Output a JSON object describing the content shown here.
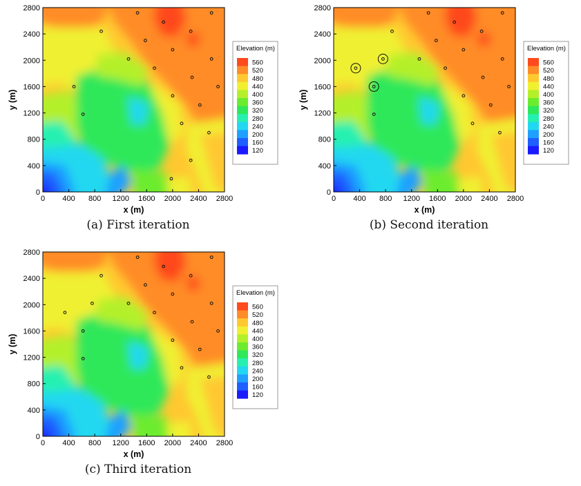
{
  "chart_data": [
    {
      "type": "heatmap",
      "panel": "a",
      "caption": "(a) First iteration",
      "xlabel": "x (m)",
      "ylabel": "y (m)",
      "xlim": [
        0,
        2800
      ],
      "ylim": [
        0,
        2800
      ],
      "xticks": [
        "0",
        "400",
        "800",
        "1200",
        "1600",
        "2000",
        "2400",
        "2800"
      ],
      "yticks": [
        "0",
        "400",
        "800",
        "1200",
        "1600",
        "2000",
        "2400",
        "2800"
      ],
      "legend_title": "Elevation (m)",
      "legend_levels": [
        "560",
        "520",
        "480",
        "440",
        "400",
        "360",
        "320",
        "280",
        "240",
        "200",
        "160",
        "120"
      ],
      "points": [
        {
          "x": 1460,
          "y": 2720
        },
        {
          "x": 2600,
          "y": 2720
        },
        {
          "x": 900,
          "y": 2440
        },
        {
          "x": 1860,
          "y": 2580
        },
        {
          "x": 2280,
          "y": 2440
        },
        {
          "x": 1580,
          "y": 2300
        },
        {
          "x": 2000,
          "y": 2160
        },
        {
          "x": 1320,
          "y": 2020
        },
        {
          "x": 1720,
          "y": 1880
        },
        {
          "x": 2600,
          "y": 2020
        },
        {
          "x": 2300,
          "y": 1740
        },
        {
          "x": 2700,
          "y": 1600
        },
        {
          "x": 480,
          "y": 1600
        },
        {
          "x": 2000,
          "y": 1460
        },
        {
          "x": 2420,
          "y": 1320
        },
        {
          "x": 620,
          "y": 1180
        },
        {
          "x": 2140,
          "y": 1040
        },
        {
          "x": 2560,
          "y": 900
        },
        {
          "x": 2280,
          "y": 480
        },
        {
          "x": 1980,
          "y": 200
        }
      ],
      "circled": []
    },
    {
      "type": "heatmap",
      "panel": "b",
      "caption": "(b) Second iteration",
      "xlabel": "x (m)",
      "ylabel": "y (m)",
      "xlim": [
        0,
        2800
      ],
      "ylim": [
        0,
        2800
      ],
      "xticks": [
        "0",
        "400",
        "800",
        "1200",
        "1600",
        "2000",
        "2400",
        "2800"
      ],
      "yticks": [
        "0",
        "400",
        "800",
        "1200",
        "1600",
        "2000",
        "2400",
        "2800"
      ],
      "legend_title": "Elevation (m)",
      "legend_levels": [
        "560",
        "520",
        "480",
        "440",
        "400",
        "360",
        "320",
        "280",
        "240",
        "200",
        "160",
        "120"
      ],
      "points": [
        {
          "x": 1460,
          "y": 2720
        },
        {
          "x": 2600,
          "y": 2720
        },
        {
          "x": 900,
          "y": 2440
        },
        {
          "x": 1860,
          "y": 2580
        },
        {
          "x": 2280,
          "y": 2440
        },
        {
          "x": 1580,
          "y": 2300
        },
        {
          "x": 2000,
          "y": 2160
        },
        {
          "x": 1320,
          "y": 2020
        },
        {
          "x": 1720,
          "y": 1880
        },
        {
          "x": 2600,
          "y": 2020
        },
        {
          "x": 2300,
          "y": 1740
        },
        {
          "x": 2700,
          "y": 1600
        },
        {
          "x": 340,
          "y": 1880
        },
        {
          "x": 760,
          "y": 2020
        },
        {
          "x": 620,
          "y": 1600
        },
        {
          "x": 2000,
          "y": 1460
        },
        {
          "x": 2420,
          "y": 1320
        },
        {
          "x": 620,
          "y": 1180
        },
        {
          "x": 2140,
          "y": 1040
        },
        {
          "x": 2560,
          "y": 900
        }
      ],
      "circled": [
        {
          "x": 340,
          "y": 1880
        },
        {
          "x": 760,
          "y": 2020
        },
        {
          "x": 620,
          "y": 1600
        }
      ]
    },
    {
      "type": "heatmap",
      "panel": "c",
      "caption": "(c) Third iteration",
      "xlabel": "x (m)",
      "ylabel": "y (m)",
      "xlim": [
        0,
        2800
      ],
      "ylim": [
        0,
        2800
      ],
      "xticks": [
        "0",
        "400",
        "800",
        "1200",
        "1600",
        "2000",
        "2400",
        "2800"
      ],
      "yticks": [
        "0",
        "400",
        "800",
        "1200",
        "1600",
        "2000",
        "2400",
        "2800"
      ],
      "legend_title": "Elevation (m)",
      "legend_levels": [
        "560",
        "520",
        "480",
        "440",
        "400",
        "360",
        "320",
        "280",
        "240",
        "200",
        "160",
        "120"
      ],
      "points": [
        {
          "x": 1460,
          "y": 2720
        },
        {
          "x": 2600,
          "y": 2720
        },
        {
          "x": 900,
          "y": 2440
        },
        {
          "x": 1860,
          "y": 2580
        },
        {
          "x": 2280,
          "y": 2440
        },
        {
          "x": 1580,
          "y": 2300
        },
        {
          "x": 2000,
          "y": 2160
        },
        {
          "x": 1320,
          "y": 2020
        },
        {
          "x": 1720,
          "y": 1880
        },
        {
          "x": 2600,
          "y": 2020
        },
        {
          "x": 2300,
          "y": 1740
        },
        {
          "x": 2700,
          "y": 1600
        },
        {
          "x": 340,
          "y": 1880
        },
        {
          "x": 760,
          "y": 2020
        },
        {
          "x": 620,
          "y": 1600
        },
        {
          "x": 2000,
          "y": 1460
        },
        {
          "x": 2420,
          "y": 1320
        },
        {
          "x": 620,
          "y": 1180
        },
        {
          "x": 2140,
          "y": 1040
        },
        {
          "x": 2560,
          "y": 900
        }
      ],
      "circled": []
    }
  ],
  "colormap": [
    "#1a1aff",
    "#1f5fff",
    "#1fa0ff",
    "#22d8f0",
    "#26f0b0",
    "#2ee85a",
    "#6cec2e",
    "#b4f02a",
    "#f0f030",
    "#ffc830",
    "#ff8c28",
    "#ff4a1e"
  ]
}
